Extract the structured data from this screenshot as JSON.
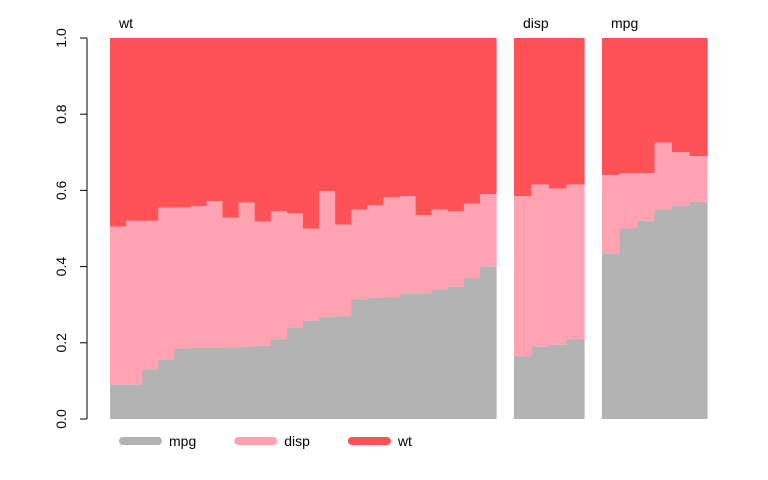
{
  "chart_data": {
    "type": "bar",
    "stacked": true,
    "normalized": true,
    "ylim": [
      0,
      1
    ],
    "yticks": [
      "0.0",
      "0.2",
      "0.4",
      "0.6",
      "0.8",
      "1.0"
    ],
    "grid": false,
    "legend": {
      "position": "bottom-left",
      "entries": [
        {
          "name": "mpg",
          "color": "#b3b3b3"
        },
        {
          "name": "disp",
          "color": "#ffa3b2"
        },
        {
          "name": "wt",
          "color": "#ff5257"
        }
      ]
    },
    "panels": [
      {
        "title": "wt",
        "mpg": [
          0.09,
          0.09,
          0.13,
          0.155,
          0.185,
          0.187,
          0.187,
          0.188,
          0.19,
          0.192,
          0.21,
          0.24,
          0.258,
          0.268,
          0.27,
          0.315,
          0.318,
          0.32,
          0.33,
          0.33,
          0.34,
          0.347,
          0.37,
          0.4
        ],
        "disp": [
          0.415,
          0.43,
          0.39,
          0.4,
          0.37,
          0.372,
          0.385,
          0.34,
          0.378,
          0.326,
          0.335,
          0.3,
          0.242,
          0.33,
          0.24,
          0.235,
          0.243,
          0.262,
          0.255,
          0.205,
          0.21,
          0.198,
          0.195,
          0.19
        ]
      },
      {
        "title": "disp",
        "mpg": [
          0.165,
          0.19,
          0.195,
          0.21
        ],
        "disp": [
          0.42,
          0.425,
          0.41,
          0.405
        ]
      },
      {
        "title": "mpg",
        "mpg": [
          0.435,
          0.5,
          0.52,
          0.55,
          0.56,
          0.57
        ],
        "disp": [
          0.205,
          0.145,
          0.125,
          0.175,
          0.14,
          0.12
        ]
      }
    ]
  }
}
